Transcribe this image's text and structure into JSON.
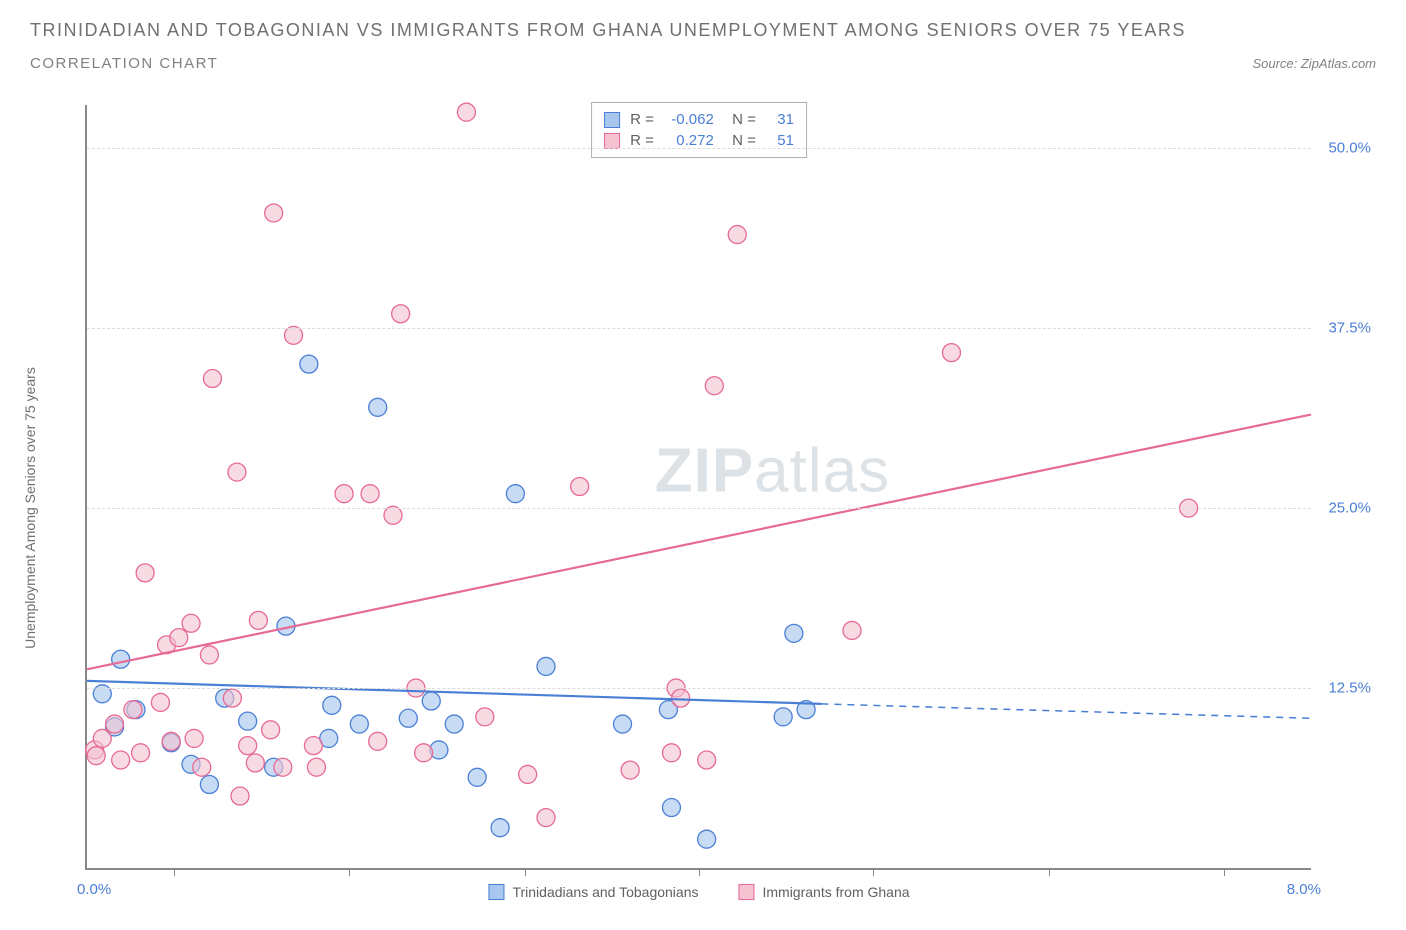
{
  "header": {
    "title": "TRINIDADIAN AND TOBAGONIAN VS IMMIGRANTS FROM GHANA UNEMPLOYMENT AMONG SENIORS OVER 75 YEARS",
    "subtitle": "CORRELATION CHART",
    "source": "Source: ZipAtlas.com"
  },
  "chart": {
    "type": "scatter",
    "y_axis_label": "Unemployment Among Seniors over 75 years",
    "xlim": [
      0.0,
      8.0
    ],
    "ylim": [
      0.0,
      53.0
    ],
    "x_min_label": "0.0%",
    "x_max_label": "8.0%",
    "y_ticks": [
      12.5,
      25.0,
      37.5,
      50.0
    ],
    "y_tick_labels": [
      "12.5%",
      "25.0%",
      "37.5%",
      "50.0%"
    ],
    "x_tick_positions": [
      0.57,
      1.71,
      2.86,
      4.0,
      5.14,
      6.29,
      7.43
    ],
    "background_color": "#ffffff",
    "grid_color": "#dcdcdc",
    "axis_color": "#888888",
    "tick_label_color": "#4a7fd6",
    "watermark": "ZIPatlas",
    "series": [
      {
        "name": "Trinidadians and Tobagonians",
        "marker_fill": "#a9c7ee",
        "marker_stroke": "#4a7fd6",
        "marker_opacity": 0.65,
        "marker_radius": 9,
        "line_color": "#4a7fd6",
        "line_width": 2.2,
        "trend_start": [
          0.0,
          13.0
        ],
        "trend_solid_end": [
          4.8,
          11.4
        ],
        "trend_dash_end": [
          8.0,
          10.4
        ],
        "R": "-0.062",
        "N": "31",
        "points": [
          [
            0.1,
            12.1
          ],
          [
            0.18,
            9.8
          ],
          [
            0.22,
            14.5
          ],
          [
            0.32,
            11.0
          ],
          [
            0.55,
            8.7
          ],
          [
            0.68,
            7.2
          ],
          [
            0.8,
            5.8
          ],
          [
            0.9,
            11.8
          ],
          [
            1.05,
            10.2
          ],
          [
            1.22,
            7.0
          ],
          [
            1.3,
            16.8
          ],
          [
            1.45,
            35.0
          ],
          [
            1.58,
            9.0
          ],
          [
            1.6,
            11.3
          ],
          [
            1.78,
            10.0
          ],
          [
            1.9,
            32.0
          ],
          [
            2.1,
            10.4
          ],
          [
            2.25,
            11.6
          ],
          [
            2.3,
            8.2
          ],
          [
            2.4,
            10.0
          ],
          [
            2.55,
            6.3
          ],
          [
            2.7,
            2.8
          ],
          [
            2.8,
            26.0
          ],
          [
            3.0,
            14.0
          ],
          [
            3.5,
            10.0
          ],
          [
            3.8,
            11.0
          ],
          [
            3.82,
            4.2
          ],
          [
            4.05,
            2.0
          ],
          [
            4.55,
            10.5
          ],
          [
            4.62,
            16.3
          ],
          [
            4.7,
            11.0
          ]
        ]
      },
      {
        "name": "Immigrants from Ghana",
        "marker_fill": "#f4c2d0",
        "marker_stroke": "#e76a94",
        "marker_opacity": 0.6,
        "marker_radius": 9,
        "line_color": "#e76a94",
        "line_width": 2.2,
        "trend_start": [
          0.0,
          13.8
        ],
        "trend_solid_end": [
          8.0,
          31.5
        ],
        "trend_dash_end": null,
        "R": "0.272",
        "N": "51",
        "points": [
          [
            0.05,
            8.2
          ],
          [
            0.06,
            7.8
          ],
          [
            0.1,
            9.0
          ],
          [
            0.18,
            10.0
          ],
          [
            0.22,
            7.5
          ],
          [
            0.35,
            8.0
          ],
          [
            0.38,
            20.5
          ],
          [
            0.48,
            11.5
          ],
          [
            0.52,
            15.5
          ],
          [
            0.55,
            8.8
          ],
          [
            0.6,
            16.0
          ],
          [
            0.68,
            17.0
          ],
          [
            0.7,
            9.0
          ],
          [
            0.75,
            7.0
          ],
          [
            0.8,
            14.8
          ],
          [
            0.82,
            34.0
          ],
          [
            0.95,
            11.8
          ],
          [
            0.98,
            27.5
          ],
          [
            1.0,
            5.0
          ],
          [
            1.05,
            8.5
          ],
          [
            1.1,
            7.3
          ],
          [
            1.12,
            17.2
          ],
          [
            1.2,
            9.6
          ],
          [
            1.22,
            45.5
          ],
          [
            1.28,
            7.0
          ],
          [
            1.35,
            37.0
          ],
          [
            1.48,
            8.5
          ],
          [
            1.5,
            7.0
          ],
          [
            1.68,
            26.0
          ],
          [
            1.85,
            26.0
          ],
          [
            1.9,
            8.8
          ],
          [
            2.0,
            24.5
          ],
          [
            2.05,
            38.5
          ],
          [
            2.15,
            12.5
          ],
          [
            2.2,
            8.0
          ],
          [
            2.48,
            52.5
          ],
          [
            2.6,
            10.5
          ],
          [
            2.88,
            6.5
          ],
          [
            3.0,
            3.5
          ],
          [
            3.22,
            26.5
          ],
          [
            3.55,
            6.8
          ],
          [
            3.82,
            8.0
          ],
          [
            3.85,
            12.5
          ],
          [
            3.88,
            11.8
          ],
          [
            4.05,
            7.5
          ],
          [
            4.1,
            33.5
          ],
          [
            4.25,
            44.0
          ],
          [
            5.0,
            16.5
          ],
          [
            5.65,
            35.8
          ],
          [
            7.2,
            25.0
          ],
          [
            0.3,
            11.0
          ]
        ]
      }
    ],
    "legend": {
      "bottom_items": [
        {
          "label": "Trinidadians and Tobagonians",
          "fill": "#a9c7ee",
          "stroke": "#4a7fd6"
        },
        {
          "label": "Immigrants from Ghana",
          "fill": "#f4c2d0",
          "stroke": "#e76a94"
        }
      ]
    }
  }
}
